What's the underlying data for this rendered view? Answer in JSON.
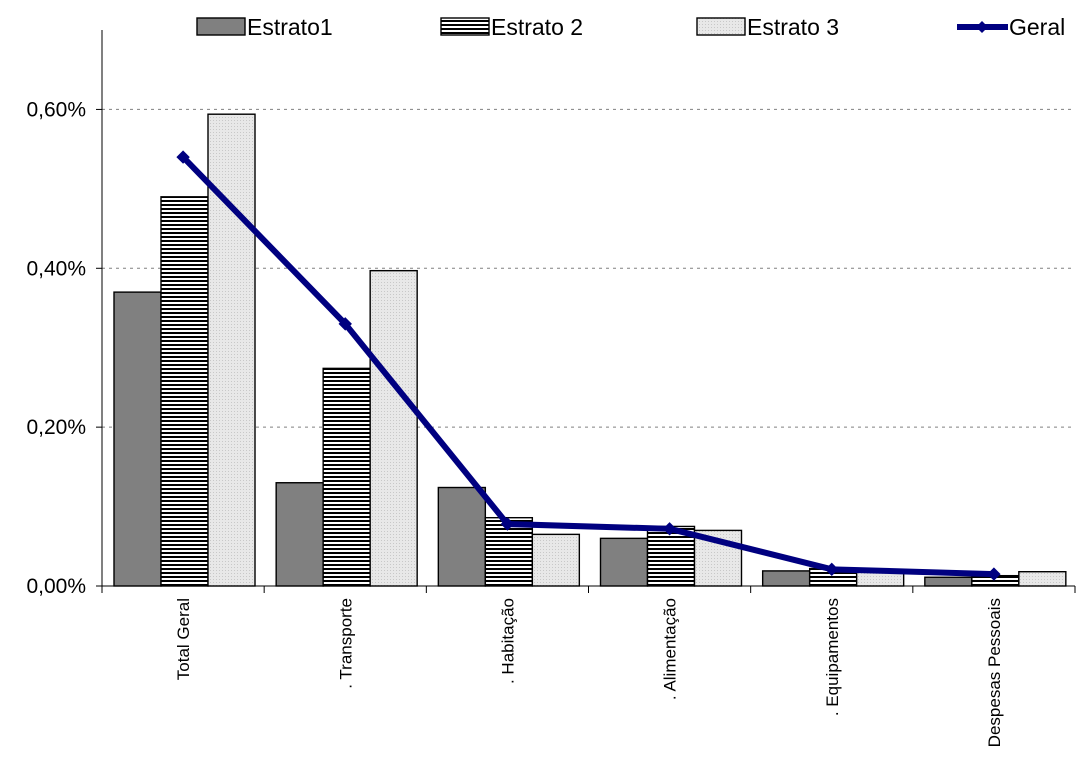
{
  "chart_data": {
    "type": "bar",
    "categories": [
      "Total Geral",
      ". Transporte",
      ". Habitação",
      ". Alimentação",
      ". Equipamentos",
      "Despesas Pessoais"
    ],
    "series": [
      {
        "name": "Estrato1",
        "type": "bar",
        "values": [
          0.37,
          0.13,
          0.124,
          0.06,
          0.019,
          0.011
        ],
        "color": "#808080",
        "pattern": "solid"
      },
      {
        "name": "Estrato 2",
        "type": "bar",
        "values": [
          0.49,
          0.274,
          0.086,
          0.075,
          0.022,
          0.013
        ],
        "color": "#ffffff",
        "pattern": "horizontal-stripes"
      },
      {
        "name": "Estrato 3",
        "type": "bar",
        "values": [
          0.594,
          0.397,
          0.065,
          0.07,
          0.02,
          0.018
        ],
        "color": "#e6e6e6",
        "pattern": "dotted"
      },
      {
        "name": "Geral",
        "type": "line",
        "values": [
          0.54,
          0.33,
          0.078,
          0.072,
          0.021,
          0.015
        ],
        "color": "#000080",
        "marker": "diamond"
      }
    ],
    "ylim": [
      0,
      0.7
    ],
    "yticks": [
      "0,00%",
      "0,20%",
      "0,40%",
      "0,60%"
    ],
    "ytick_values": [
      0,
      0.2,
      0.4,
      0.6
    ],
    "grid": true,
    "legend_position": "top"
  }
}
